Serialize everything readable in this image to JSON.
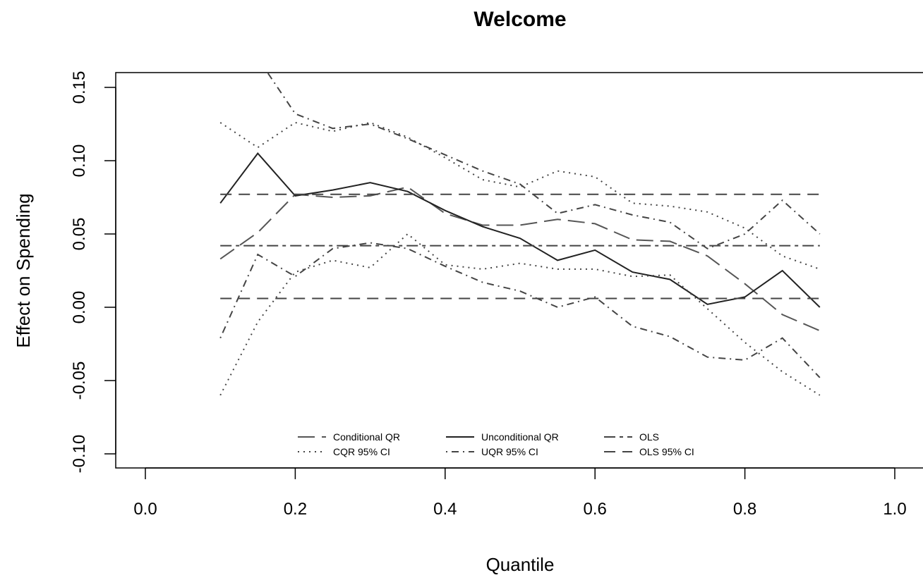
{
  "chart_data": {
    "type": "line",
    "title": "Welcome",
    "xlabel": "Quantile",
    "ylabel": "Effect on Spending",
    "xlim": [
      -0.2,
      1.02
    ],
    "ylim": [
      -0.11,
      0.16
    ],
    "xticks": [
      0.0,
      0.2,
      0.4,
      0.6,
      0.8,
      1.0
    ],
    "xtick_labels": [
      "0.0",
      "0.2",
      "0.4",
      "0.6",
      "0.8",
      "1.0"
    ],
    "yticks": [
      -0.1,
      -0.05,
      0.0,
      0.05,
      0.1,
      0.15
    ],
    "ytick_labels": [
      "-0.10",
      "-0.05",
      "0.00",
      "0.05",
      "0.10",
      "0.15"
    ],
    "grid": false,
    "legend_position": "bottom-center",
    "x": [
      0.1,
      0.15,
      0.2,
      0.25,
      0.3,
      0.35,
      0.4,
      0.45,
      0.5,
      0.55,
      0.6,
      0.65,
      0.7,
      0.75,
      0.8,
      0.85,
      0.9
    ],
    "series": [
      {
        "name": "Conditional QR",
        "style": "longdash",
        "color": "#555555",
        "values": [
          0.033,
          0.051,
          0.077,
          0.075,
          0.076,
          0.082,
          0.064,
          0.056,
          0.056,
          0.06,
          0.057,
          0.046,
          0.045,
          0.035,
          0.016,
          -0.005,
          -0.016
        ]
      },
      {
        "name": "Unconditional QR",
        "style": "solid",
        "color": "#222222",
        "values": [
          0.071,
          0.105,
          0.076,
          0.08,
          0.085,
          0.079,
          0.066,
          0.055,
          0.047,
          0.032,
          0.039,
          0.024,
          0.019,
          0.002,
          0.007,
          0.025,
          0.0
        ]
      },
      {
        "name": "OLS",
        "style": "twodash",
        "color": "#444444",
        "values": [
          0.042,
          0.042,
          0.042,
          0.042,
          0.042,
          0.042,
          0.042,
          0.042,
          0.042,
          0.042,
          0.042,
          0.042,
          0.042,
          0.042,
          0.042,
          0.042,
          0.042
        ]
      },
      {
        "name": "CQR 95% CI",
        "style": "dotted",
        "color": "#444444",
        "bands": [
          [
            -0.06,
            -0.01,
            0.024,
            0.032,
            0.027,
            0.05,
            0.029,
            0.026,
            0.03,
            0.026,
            0.026,
            0.021,
            0.022,
            -0.001,
            -0.024,
            -0.044,
            -0.06
          ],
          [
            0.126,
            0.109,
            0.126,
            0.12,
            0.126,
            0.116,
            0.102,
            0.087,
            0.082,
            0.093,
            0.089,
            0.071,
            0.069,
            0.065,
            0.054,
            0.035,
            0.026
          ]
        ]
      },
      {
        "name": "UQR 95% CI",
        "style": "dotdash",
        "color": "#444444",
        "bands": [
          [
            -0.021,
            0.036,
            0.021,
            0.04,
            0.044,
            0.04,
            0.028,
            0.017,
            0.011,
            0.0,
            0.007,
            -0.013,
            -0.02,
            -0.034,
            -0.036,
            -0.021,
            -0.048
          ],
          [
            0.165,
            0.17,
            0.132,
            0.122,
            0.125,
            0.115,
            0.104,
            0.093,
            0.084,
            0.064,
            0.07,
            0.063,
            0.058,
            0.04,
            0.05,
            0.073,
            0.05
          ]
        ]
      },
      {
        "name": "OLS 95% CI",
        "style": "dashed",
        "color": "#444444",
        "bands": [
          [
            0.006,
            0.006,
            0.006,
            0.006,
            0.006,
            0.006,
            0.006,
            0.006,
            0.006,
            0.006,
            0.006,
            0.006,
            0.006,
            0.006,
            0.006,
            0.006,
            0.006
          ],
          [
            0.077,
            0.077,
            0.077,
            0.077,
            0.077,
            0.077,
            0.077,
            0.077,
            0.077,
            0.077,
            0.077,
            0.077,
            0.077,
            0.077,
            0.077,
            0.077,
            0.077
          ]
        ]
      }
    ]
  }
}
